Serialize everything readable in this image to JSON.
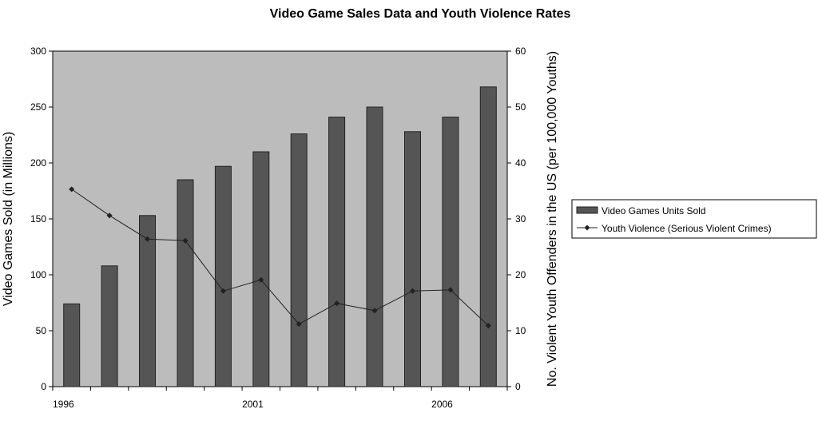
{
  "chart_data": {
    "type": "bar",
    "title": "Video Game Sales Data and Youth Violence Rates",
    "x": [
      1996,
      1997,
      1998,
      1999,
      2000,
      2001,
      2002,
      2003,
      2004,
      2005,
      2006,
      2007
    ],
    "x_tick_labels": [
      "1996",
      "2001",
      "2006"
    ],
    "x_tick_label_values": [
      1996,
      2001,
      2006
    ],
    "y_left_label": "Video Games Sold (in Millions)",
    "y_left_lim": [
      0,
      300
    ],
    "y_left_ticks": [
      "0",
      "50",
      "100",
      "150",
      "200",
      "250",
      "300"
    ],
    "y_right_label": "No. Violent Youth Offenders in the US (per 100,000 Youths)",
    "y_right_lim": [
      0,
      60
    ],
    "y_right_ticks": [
      "0",
      "10",
      "20",
      "30",
      "40",
      "50",
      "60"
    ],
    "series": [
      {
        "name": "Video Games Units Sold",
        "type": "bar",
        "axis": "left",
        "color": "#555555",
        "values": [
          74,
          108,
          153,
          185,
          197,
          210,
          226,
          241,
          250,
          228,
          241,
          268
        ]
      },
      {
        "name": "Youth Violence (Serious Violent Crimes)",
        "type": "line",
        "axis": "right",
        "color": "#222222",
        "marker": "diamond",
        "values": [
          35.3,
          30.6,
          26.4,
          26.1,
          17.1,
          19.1,
          11.2,
          14.9,
          13.6,
          17.1,
          17.3,
          10.9
        ]
      }
    ],
    "plot_background": "#bcbcbc",
    "grid": false,
    "legend_position": "right"
  }
}
